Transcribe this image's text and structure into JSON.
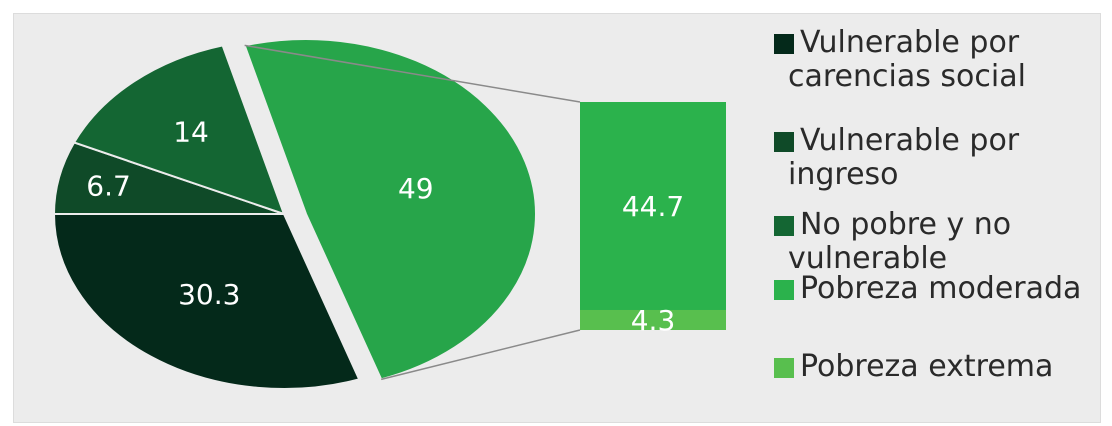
{
  "chart_data": {
    "type": "pie",
    "title": "",
    "pie": {
      "slices": [
        {
          "category": "vulnerable_ingreso",
          "value": 6.7,
          "color": "#0f4a28"
        },
        {
          "category": "no_pobre",
          "value": 14,
          "color": "#146633"
        },
        {
          "category": "pobreza",
          "value": 49,
          "color": "#27a54a"
        },
        {
          "category": "vulnerable_carencias",
          "value": 30.3,
          "color": "#04291a"
        }
      ],
      "labels": [
        "6.7",
        "14",
        "49",
        "30.3"
      ]
    },
    "breakdown": {
      "of": "49",
      "segments": [
        {
          "name": "Pobreza moderada",
          "value": 44.7,
          "label": "44.7",
          "color": "#2bb24c"
        },
        {
          "name": "Pobreza extrema",
          "value": 4.3,
          "label": "4.3",
          "color": "#58bf4e"
        }
      ]
    },
    "legend": [
      {
        "lines": [
          "Vulnerable por",
          "carencias social"
        ],
        "color": "#04291a"
      },
      {
        "lines": [
          "Vulnerable por",
          "ingreso"
        ],
        "color": "#0f4a28"
      },
      {
        "lines": [
          "No pobre y no",
          "vulnerable"
        ],
        "color": "#146633"
      },
      {
        "lines": [
          "Pobreza moderada"
        ],
        "color": "#2bb24c"
      },
      {
        "lines": [
          "Pobreza extrema"
        ],
        "color": "#58bf4e"
      }
    ],
    "legend_position": "right"
  }
}
